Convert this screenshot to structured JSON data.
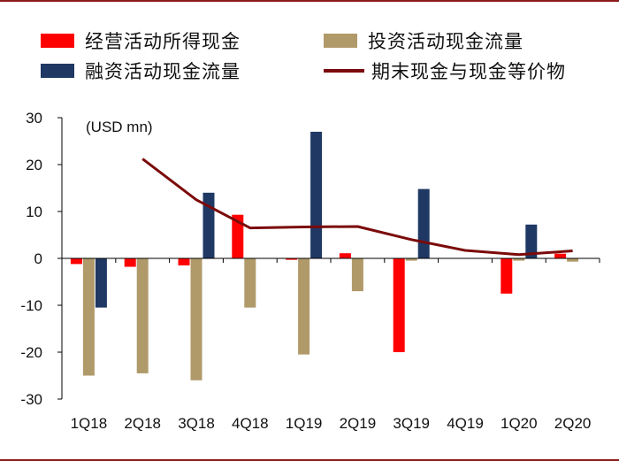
{
  "legend": {
    "items": [
      {
        "key": "operating",
        "label": "经营活动所得现金",
        "color": "#ff0000",
        "kind": "bar"
      },
      {
        "key": "investing",
        "label": "投资活动现金流量",
        "color": "#b09a6a",
        "kind": "bar"
      },
      {
        "key": "financing",
        "label": "融资活动现金流量",
        "color": "#1f3864",
        "kind": "bar"
      },
      {
        "key": "ending_cash",
        "label": "期末现金与现金等价物",
        "color": "#7b0a0a",
        "kind": "line"
      }
    ]
  },
  "chart_data": {
    "type": "bar",
    "unit_label": "(USD mn)",
    "categories": [
      "1Q18",
      "2Q18",
      "3Q18",
      "4Q18",
      "1Q19",
      "2Q19",
      "3Q19",
      "4Q19",
      "1Q20",
      "2Q20"
    ],
    "ylim": [
      -30,
      30
    ],
    "yticks": [
      30,
      20,
      10,
      0,
      -10,
      -20,
      -30
    ],
    "grid": false,
    "legend_position": "top",
    "series": [
      {
        "name": "经营活动所得现金",
        "type": "bar",
        "color": "#ff0000",
        "values": [
          -1.2,
          -1.8,
          -1.5,
          9.3,
          -0.3,
          1.1,
          -20.0,
          0.0,
          -7.5,
          1.0
        ]
      },
      {
        "name": "投资活动现金流量",
        "type": "bar",
        "color": "#b09a6a",
        "values": [
          -25.0,
          -24.5,
          -26.0,
          -10.5,
          -20.5,
          -7.0,
          -0.5,
          0.0,
          -0.5,
          -0.7
        ]
      },
      {
        "name": "融资活动现金流量",
        "type": "bar",
        "color": "#1f3864",
        "values": [
          -10.5,
          0.0,
          14.0,
          0.0,
          27.0,
          0.0,
          14.8,
          0.0,
          7.2,
          0.0
        ]
      },
      {
        "name": "期末现金与现金等价物",
        "type": "line",
        "color": "#7b0a0a",
        "values": [
          null,
          21.2,
          12.5,
          6.5,
          6.7,
          6.8,
          4.0,
          1.7,
          0.8,
          1.6
        ]
      }
    ]
  }
}
